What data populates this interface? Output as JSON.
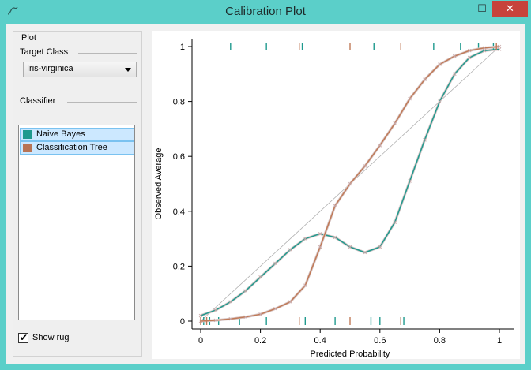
{
  "window": {
    "title": "Calibration Plot",
    "minimize_glyph": "—",
    "maximize_glyph": "☐",
    "close_glyph": "✕",
    "app_icon": "tilde-line-icon"
  },
  "sidebar": {
    "group_title": "Plot",
    "target_class_label": "Target Class",
    "target_class_value": "Iris-virginica",
    "classifier_label": "Classifier",
    "classifiers": [
      {
        "label": "Naive Bayes",
        "color": "#1f9a8e"
      },
      {
        "label": "Classification Tree",
        "color": "#c07a57"
      }
    ],
    "show_rug_label": "Show rug",
    "show_rug_checked": true
  },
  "chart_data": {
    "type": "line",
    "xlabel": "Predicted Probability",
    "ylabel": "Observed Average",
    "xlim": [
      0,
      1
    ],
    "ylim": [
      0,
      1
    ],
    "x_ticks": [
      "0",
      "0.2",
      "0.4",
      "0.6",
      "0.8",
      "1"
    ],
    "y_ticks": [
      "0",
      "0.2",
      "0.4",
      "0.6",
      "0.8",
      "1"
    ],
    "diagonal": true,
    "grid": false,
    "series": [
      {
        "name": "Naive Bayes",
        "color": "#1f9a8e",
        "points": [
          [
            0,
            0.02
          ],
          [
            0.05,
            0.04
          ],
          [
            0.1,
            0.07
          ],
          [
            0.15,
            0.11
          ],
          [
            0.2,
            0.16
          ],
          [
            0.25,
            0.21
          ],
          [
            0.3,
            0.26
          ],
          [
            0.35,
            0.3
          ],
          [
            0.4,
            0.318
          ],
          [
            0.45,
            0.305
          ],
          [
            0.5,
            0.27
          ],
          [
            0.55,
            0.25
          ],
          [
            0.6,
            0.27
          ],
          [
            0.65,
            0.36
          ],
          [
            0.7,
            0.51
          ],
          [
            0.75,
            0.66
          ],
          [
            0.8,
            0.8
          ],
          [
            0.85,
            0.9
          ],
          [
            0.9,
            0.96
          ],
          [
            0.95,
            0.985
          ],
          [
            1,
            0.99
          ]
        ],
        "rug_top": [
          0.1,
          0.22,
          0.34,
          0.58,
          0.78,
          0.87,
          0.93,
          0.98
        ],
        "rug_bottom": [
          0.01,
          0.03,
          0.06,
          0.13,
          0.22,
          0.35,
          0.45,
          0.57,
          0.6,
          0.67,
          0.68
        ]
      },
      {
        "name": "Classification Tree",
        "color": "#c07a57",
        "points": [
          [
            0,
            0.0
          ],
          [
            0.05,
            0.003
          ],
          [
            0.1,
            0.008
          ],
          [
            0.15,
            0.015
          ],
          [
            0.2,
            0.025
          ],
          [
            0.25,
            0.045
          ],
          [
            0.3,
            0.07
          ],
          [
            0.35,
            0.13
          ],
          [
            0.4,
            0.27
          ],
          [
            0.45,
            0.42
          ],
          [
            0.5,
            0.5
          ],
          [
            0.55,
            0.565
          ],
          [
            0.6,
            0.64
          ],
          [
            0.65,
            0.72
          ],
          [
            0.7,
            0.81
          ],
          [
            0.75,
            0.88
          ],
          [
            0.8,
            0.935
          ],
          [
            0.85,
            0.965
          ],
          [
            0.9,
            0.985
          ],
          [
            0.95,
            0.995
          ],
          [
            1,
            1.0
          ]
        ],
        "rug_top": [
          0.33,
          0.5,
          0.67,
          0.99
        ],
        "rug_bottom": [
          0.0,
          0.02,
          0.33,
          0.5,
          0.67
        ]
      }
    ]
  }
}
